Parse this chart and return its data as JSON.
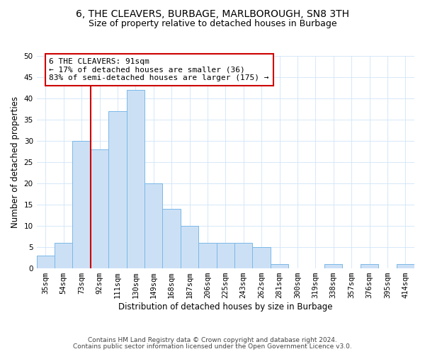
{
  "title": "6, THE CLEAVERS, BURBAGE, MARLBOROUGH, SN8 3TH",
  "subtitle": "Size of property relative to detached houses in Burbage",
  "xlabel": "Distribution of detached houses by size in Burbage",
  "ylabel": "Number of detached properties",
  "bar_labels": [
    "35sqm",
    "54sqm",
    "73sqm",
    "92sqm",
    "111sqm",
    "130sqm",
    "149sqm",
    "168sqm",
    "187sqm",
    "206sqm",
    "225sqm",
    "243sqm",
    "262sqm",
    "281sqm",
    "300sqm",
    "319sqm",
    "338sqm",
    "357sqm",
    "376sqm",
    "395sqm",
    "414sqm"
  ],
  "bar_values": [
    3,
    6,
    30,
    28,
    37,
    42,
    20,
    14,
    10,
    6,
    6,
    6,
    5,
    1,
    0,
    0,
    1,
    0,
    1,
    0,
    1
  ],
  "bar_color": "#cce0f5",
  "bar_edge_color": "#7ab8e8",
  "vline_x": 2.5,
  "vline_color": "#cc0000",
  "annotation_text": "6 THE CLEAVERS: 91sqm\n← 17% of detached houses are smaller (36)\n83% of semi-detached houses are larger (175) →",
  "annotation_box_color": "#ffffff",
  "annotation_box_edge": "#cc0000",
  "ylim": [
    0,
    50
  ],
  "yticks": [
    0,
    5,
    10,
    15,
    20,
    25,
    30,
    35,
    40,
    45,
    50
  ],
  "footnote1": "Contains HM Land Registry data © Crown copyright and database right 2024.",
  "footnote2": "Contains public sector information licensed under the Open Government Licence v3.0.",
  "title_fontsize": 10,
  "subtitle_fontsize": 9,
  "axis_label_fontsize": 8.5,
  "tick_fontsize": 7.5,
  "annotation_fontsize": 8,
  "footnote_fontsize": 6.5
}
